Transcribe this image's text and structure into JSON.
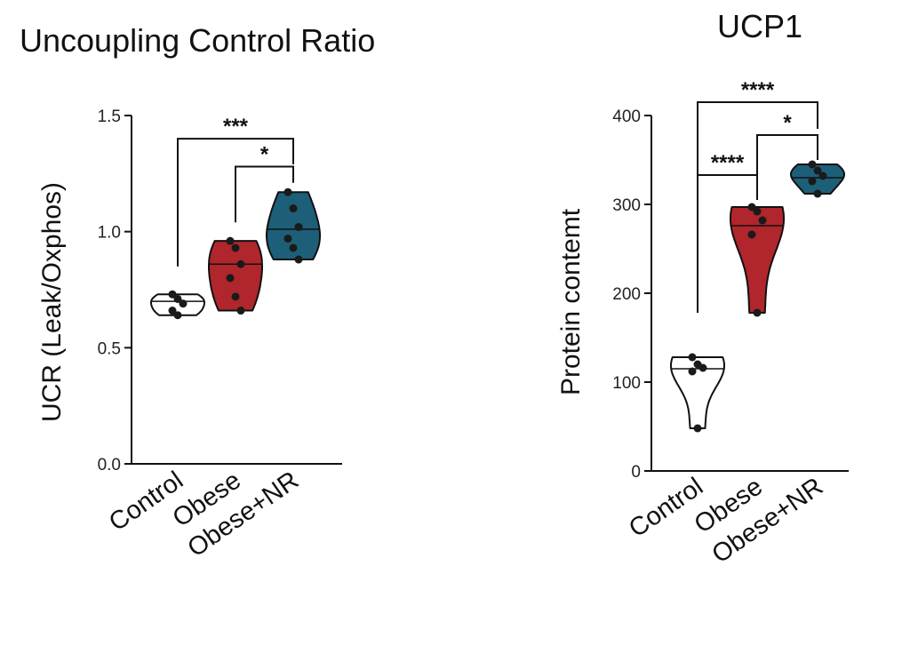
{
  "colors": {
    "control": "#ffffff",
    "obese": "#b0262c",
    "obese_nr": "#1d5f78",
    "ink": "#111111"
  },
  "chart_data": [
    {
      "type": "violin",
      "title": "Uncoupling Control Ratio",
      "ylabel": "UCR (Leak/Oxphos)",
      "xlabel": "",
      "ylim": [
        0,
        1.5
      ],
      "yticks": [
        0,
        0.5,
        1.0,
        1.5
      ],
      "ytick_labels": [
        "0.0",
        "0.5",
        "1.0",
        "1.5"
      ],
      "categories": [
        "Control",
        "Obese",
        "Obese+NR"
      ],
      "series": [
        {
          "category": "Control",
          "points": [
            0.73,
            0.71,
            0.69,
            0.66,
            0.64
          ],
          "median": 0.7,
          "color": "control"
        },
        {
          "category": "Obese",
          "points": [
            0.96,
            0.93,
            0.86,
            0.8,
            0.72,
            0.66
          ],
          "median": 0.86,
          "color": "obese"
        },
        {
          "category": "Obese+NR",
          "points": [
            1.17,
            1.1,
            1.02,
            0.97,
            0.93,
            0.88
          ],
          "median": 1.01,
          "color": "obese_nr"
        }
      ],
      "significance": [
        {
          "from": "Control",
          "to": "Obese+NR",
          "label": "***",
          "y": 1.4,
          "left_drop": 0.85,
          "right_drop": 1.29
        },
        {
          "from": "Obese",
          "to": "Obese+NR",
          "label": "*",
          "y": 1.28,
          "left_drop": 1.04,
          "right_drop": 1.21
        }
      ]
    },
    {
      "type": "violin",
      "title": "UCP1",
      "ylabel": "Protein contemt",
      "xlabel": "",
      "ylim": [
        0,
        400
      ],
      "yticks": [
        0,
        100,
        200,
        300,
        400
      ],
      "ytick_labels": [
        "0",
        "100",
        "200",
        "300",
        "400"
      ],
      "categories": [
        "Control",
        "Obese",
        "Obese+NR"
      ],
      "series": [
        {
          "category": "Control",
          "points": [
            128,
            120,
            116,
            112,
            48
          ],
          "median": 115,
          "color": "control"
        },
        {
          "category": "Obese",
          "points": [
            297,
            292,
            282,
            266,
            178
          ],
          "median": 276,
          "color": "obese"
        },
        {
          "category": "Obese+NR",
          "points": [
            345,
            338,
            332,
            326,
            312
          ],
          "median": 330,
          "color": "obese_nr"
        }
      ],
      "significance": [
        {
          "from": "Control",
          "to": "Obese+NR",
          "label": "****",
          "y": 415,
          "left_drop": 178,
          "right_drop": 385
        },
        {
          "from": "Obese",
          "to": "Obese+NR",
          "label": "*",
          "y": 378,
          "left_drop": 305,
          "right_drop": 350
        },
        {
          "from": "Control",
          "to": "Obese",
          "label": "****",
          "y": 333,
          "left_drop": 178,
          "right_drop": 308
        }
      ]
    }
  ]
}
